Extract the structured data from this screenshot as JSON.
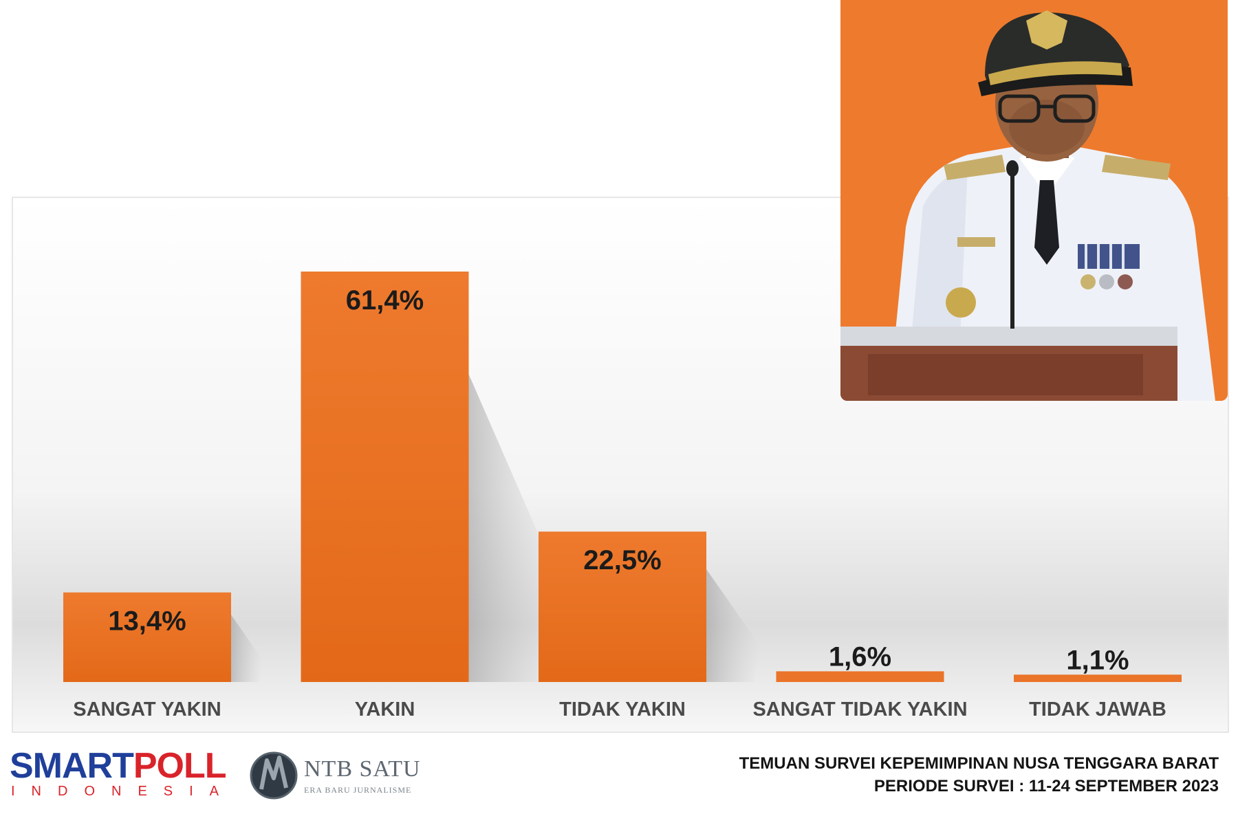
{
  "chart_data": {
    "type": "bar",
    "categories": [
      "SANGAT YAKIN",
      "YAKIN",
      "TIDAK YAKIN",
      "SANGAT TIDAK YAKIN",
      "TIDAK JAWAB"
    ],
    "values": [
      13.4,
      61.4,
      22.5,
      1.6,
      1.1
    ],
    "value_labels": [
      "13,4%",
      "61,4%",
      "22,5%",
      "1,6%",
      "1,1%"
    ],
    "unit": "%",
    "ylim": [
      0,
      61.4
    ],
    "bar_color": "#ea7429",
    "grid": false,
    "legend": "none"
  },
  "photo": {
    "description_icon": "governor-portrait-image",
    "background_color": "#ee7a2d"
  },
  "footer": {
    "smartpoll": {
      "word_a": "SMART",
      "word_b": "POLL",
      "sub": "INDONESIA"
    },
    "ntb": {
      "name": "NTB SATU",
      "tagline": "ERA BARU JURNALISME"
    },
    "title_line1": "TEMUAN SURVEI KEPEMIMPINAN NUSA TENGGARA BARAT",
    "title_line2": "PERIODE SURVEI : 11-24 SEPTEMBER 2023"
  }
}
